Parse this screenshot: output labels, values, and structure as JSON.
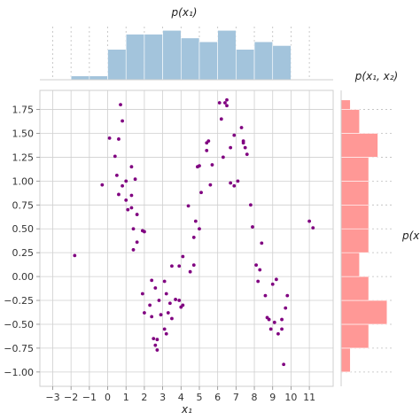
{
  "chart_data": [
    {
      "type": "scatter",
      "name": "joint",
      "xlabel": "x₁",
      "xlim": [
        -3.7,
        12.3
      ],
      "ylim": [
        -1.15,
        1.95
      ],
      "xticks": [
        -3,
        -2,
        -1,
        0,
        1,
        2,
        3,
        4,
        5,
        6,
        7,
        8,
        9,
        10,
        11
      ],
      "yticks": [
        -1.0,
        -0.75,
        -0.5,
        -0.25,
        0.0,
        0.25,
        0.5,
        0.75,
        1.0,
        1.25,
        1.5,
        1.75
      ],
      "point_color": "#800080",
      "grid": true,
      "points": [
        [
          -1.8,
          0.22
        ],
        [
          -0.3,
          0.96
        ],
        [
          0.1,
          1.45
        ],
        [
          0.4,
          1.26
        ],
        [
          0.5,
          1.06
        ],
        [
          0.6,
          1.44
        ],
        [
          0.6,
          0.86
        ],
        [
          0.7,
          1.8
        ],
        [
          0.8,
          0.95
        ],
        [
          0.8,
          1.63
        ],
        [
          1.0,
          0.8
        ],
        [
          1.0,
          1.0
        ],
        [
          1.1,
          0.7
        ],
        [
          1.3,
          1.15
        ],
        [
          1.3,
          0.72
        ],
        [
          1.3,
          0.85
        ],
        [
          1.4,
          0.5
        ],
        [
          1.4,
          0.28
        ],
        [
          1.5,
          1.02
        ],
        [
          1.6,
          0.65
        ],
        [
          1.6,
          0.36
        ],
        [
          1.9,
          0.48
        ],
        [
          2.0,
          0.47
        ],
        [
          1.9,
          -0.18
        ],
        [
          2.0,
          -0.38
        ],
        [
          2.3,
          -0.3
        ],
        [
          2.4,
          -0.04
        ],
        [
          2.4,
          -0.42
        ],
        [
          2.5,
          -0.65
        ],
        [
          2.6,
          -0.12
        ],
        [
          2.6,
          -0.72
        ],
        [
          2.7,
          -0.77
        ],
        [
          2.7,
          -0.66
        ],
        [
          2.8,
          -0.25
        ],
        [
          2.9,
          -0.4
        ],
        [
          3.1,
          -0.05
        ],
        [
          3.1,
          -0.55
        ],
        [
          3.2,
          -0.18
        ],
        [
          3.2,
          -0.6
        ],
        [
          3.3,
          -0.38
        ],
        [
          3.4,
          -0.28
        ],
        [
          3.5,
          -0.44
        ],
        [
          3.5,
          0.11
        ],
        [
          3.7,
          -0.24
        ],
        [
          3.9,
          -0.25
        ],
        [
          3.9,
          0.11
        ],
        [
          4.0,
          -0.32
        ],
        [
          4.1,
          -0.3
        ],
        [
          4.1,
          0.21
        ],
        [
          4.4,
          0.74
        ],
        [
          4.5,
          0.05
        ],
        [
          4.7,
          0.12
        ],
        [
          4.7,
          0.41
        ],
        [
          4.8,
          0.58
        ],
        [
          4.9,
          1.15
        ],
        [
          5.0,
          0.5
        ],
        [
          5.0,
          1.16
        ],
        [
          5.1,
          0.88
        ],
        [
          5.4,
          1.32
        ],
        [
          5.4,
          1.4
        ],
        [
          5.5,
          1.42
        ],
        [
          5.6,
          0.96
        ],
        [
          5.7,
          1.17
        ],
        [
          6.1,
          1.82
        ],
        [
          6.2,
          1.65
        ],
        [
          6.3,
          1.25
        ],
        [
          6.4,
          1.82
        ],
        [
          6.5,
          1.85
        ],
        [
          6.5,
          1.79
        ],
        [
          6.7,
          1.35
        ],
        [
          6.7,
          0.98
        ],
        [
          6.9,
          0.95
        ],
        [
          6.9,
          1.48
        ],
        [
          7.1,
          1.0
        ],
        [
          7.3,
          1.56
        ],
        [
          7.4,
          1.4
        ],
        [
          7.4,
          1.42
        ],
        [
          7.5,
          1.35
        ],
        [
          7.6,
          1.28
        ],
        [
          7.8,
          0.75
        ],
        [
          7.9,
          0.52
        ],
        [
          8.1,
          0.12
        ],
        [
          8.2,
          -0.05
        ],
        [
          8.3,
          0.07
        ],
        [
          8.4,
          0.35
        ],
        [
          8.6,
          -0.2
        ],
        [
          8.7,
          -0.43
        ],
        [
          8.8,
          -0.45
        ],
        [
          8.9,
          -0.55
        ],
        [
          9.0,
          -0.08
        ],
        [
          9.1,
          -0.48
        ],
        [
          9.2,
          -0.03
        ],
        [
          9.3,
          -0.6
        ],
        [
          9.5,
          -0.45
        ],
        [
          9.5,
          -0.55
        ],
        [
          9.6,
          -0.92
        ],
        [
          9.7,
          -0.33
        ],
        [
          9.8,
          -0.2
        ],
        [
          11.0,
          0.58
        ],
        [
          11.2,
          0.51
        ]
      ]
    },
    {
      "type": "bar",
      "name": "marginal-x",
      "title": "p(x₁)",
      "orientation": "vertical",
      "color": "#a3c4dc",
      "bin_edges": [
        -2,
        -1,
        0,
        1,
        2,
        3,
        4,
        5,
        6,
        7,
        8,
        9,
        10
      ],
      "values": [
        1,
        1,
        8,
        12,
        12,
        13,
        11,
        10,
        13,
        8,
        10,
        9
      ],
      "ylim": [
        0,
        14
      ]
    },
    {
      "type": "bar",
      "name": "marginal-y",
      "title": "p(x₁, x₂)",
      "orientation": "horizontal",
      "color": "#ff9896",
      "bin_edges": [
        -1.0,
        -0.75,
        -0.5,
        -0.25,
        0.0,
        0.25,
        0.5,
        0.75,
        1.0,
        1.25,
        1.5,
        1.75
      ],
      "values": [
        1,
        3,
        5,
        3,
        2,
        3,
        3,
        3,
        3,
        4,
        2
      ],
      "overflow_bin": {
        "range": [
          1.75,
          1.85
        ],
        "value": 1
      },
      "xlim": [
        0,
        5.5
      ]
    }
  ],
  "side_label": "p(x"
}
